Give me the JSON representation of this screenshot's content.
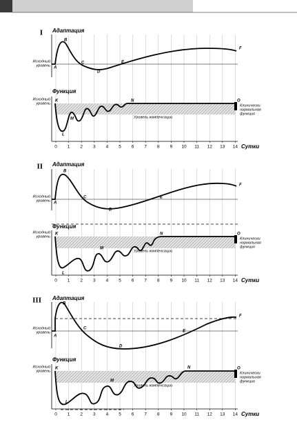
{
  "panels": [
    {
      "numeral": "I",
      "adaptation": {
        "title": "Адаптация",
        "baseline_label": [
          "Исходный",
          "уровень"
        ],
        "points": [
          "A",
          "B",
          "C",
          "D",
          "E",
          "F"
        ]
      },
      "function": {
        "title": "Функция",
        "baseline_label": [
          "Исходный",
          "уровень"
        ],
        "points": [
          "K",
          "L",
          "M",
          "N",
          "O"
        ],
        "compensation_label": "Уровень компенсации",
        "normal_label": [
          "Клинически",
          "нормальная",
          "функция"
        ]
      },
      "axis": {
        "ticks": [
          0,
          1,
          2,
          3,
          4,
          5,
          6,
          7,
          8,
          9,
          10,
          11,
          12,
          13,
          14
        ],
        "label": "Сутки"
      }
    },
    {
      "numeral": "II",
      "adaptation": {
        "title": "Адаптация",
        "baseline_label": [
          "Исходный",
          "уровень"
        ],
        "points": [
          "A",
          "B",
          "C",
          "D",
          "E",
          "F"
        ]
      },
      "function": {
        "title": "Функция",
        "baseline_label": [
          "Исходный",
          "уровень"
        ],
        "points": [
          "K",
          "L",
          "M",
          "N",
          "O"
        ],
        "compensation_label": "Уровень компенсации",
        "normal_label": [
          "Клинически",
          "нормальная",
          "функция"
        ]
      },
      "axis": {
        "ticks": [
          0,
          1,
          2,
          3,
          4,
          5,
          6,
          7,
          8,
          9,
          10,
          11,
          12,
          13,
          14
        ],
        "label": "Сутки"
      }
    },
    {
      "numeral": "III",
      "adaptation": {
        "title": "Адаптация",
        "baseline_label": [
          "Исходный",
          "уровень"
        ],
        "points": [
          "A",
          "B",
          "C",
          "D",
          "E",
          "F"
        ]
      },
      "function": {
        "title": "Функция",
        "baseline_label": [
          "Исходный",
          "уровень"
        ],
        "points": [
          "K",
          "L",
          "M",
          "N",
          "O"
        ],
        "compensation_label": "Уровень компенсации",
        "normal_label": [
          "Клинически",
          "нормальная",
          "функция"
        ]
      },
      "axis": {
        "ticks": [
          0,
          1,
          2,
          3,
          4,
          5,
          6,
          7,
          8,
          9,
          10,
          11,
          12,
          13,
          14
        ],
        "label": "Сутки"
      }
    }
  ]
}
